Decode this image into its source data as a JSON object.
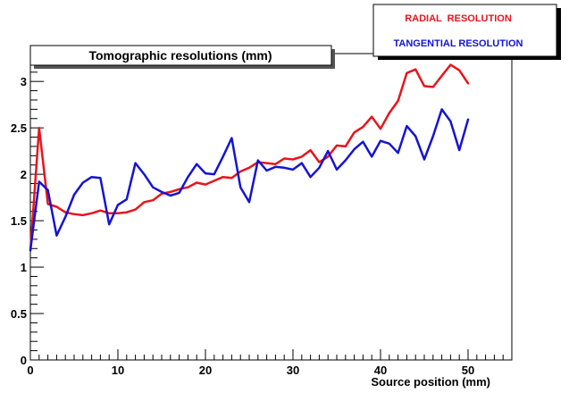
{
  "chart_data": {
    "type": "line",
    "title": "Tomographic resolutions (mm)",
    "xlabel": "Source position (mm)",
    "ylabel": "",
    "xlim": [
      0,
      55
    ],
    "ylim": [
      0,
      3.3
    ],
    "xticks": [
      0,
      10,
      20,
      30,
      40,
      50
    ],
    "yticks": [
      0,
      0.5,
      1,
      1.5,
      2,
      2.5,
      3
    ],
    "ytick_labels": [
      "0",
      "0.5",
      "1",
      "1.5",
      "2",
      "2.5",
      "3"
    ],
    "legend_position": "top-right",
    "grid": false,
    "x": [
      0,
      1,
      2,
      3,
      4,
      5,
      6,
      7,
      8,
      9,
      10,
      11,
      12,
      13,
      14,
      15,
      16,
      17,
      18,
      19,
      20,
      21,
      22,
      23,
      24,
      25,
      26,
      27,
      28,
      29,
      30,
      31,
      32,
      33,
      34,
      35,
      36,
      37,
      38,
      39,
      40,
      41,
      42,
      43,
      44,
      45,
      46,
      47,
      48,
      49,
      50
    ],
    "series": [
      {
        "name": "RADIAL  RESOLUTION",
        "color": "#e8141c",
        "values": [
          1.18,
          2.5,
          1.68,
          1.65,
          1.59,
          1.57,
          1.56,
          1.58,
          1.61,
          1.58,
          1.58,
          1.59,
          1.62,
          1.7,
          1.72,
          1.79,
          1.81,
          1.84,
          1.86,
          1.91,
          1.89,
          1.93,
          1.97,
          1.96,
          2.03,
          2.07,
          2.13,
          2.12,
          2.11,
          2.17,
          2.16,
          2.19,
          2.26,
          2.13,
          2.19,
          2.31,
          2.3,
          2.45,
          2.51,
          2.62,
          2.49,
          2.66,
          2.79,
          3.09,
          3.13,
          2.95,
          2.94,
          3.06,
          3.18,
          3.12,
          2.98
        ]
      },
      {
        "name": "TANGENTIAL RESOLUTION",
        "color": "#1414d2",
        "values": [
          1.18,
          1.92,
          1.83,
          1.34,
          1.54,
          1.78,
          1.91,
          1.97,
          1.96,
          1.46,
          1.67,
          1.73,
          2.12,
          2.0,
          1.86,
          1.81,
          1.77,
          1.8,
          1.97,
          2.11,
          2.01,
          2.0,
          2.19,
          2.39,
          1.86,
          1.7,
          2.15,
          2.04,
          2.08,
          2.07,
          2.05,
          2.12,
          1.97,
          2.07,
          2.25,
          2.05,
          2.15,
          2.27,
          2.35,
          2.19,
          2.36,
          2.33,
          2.23,
          2.52,
          2.41,
          2.16,
          2.41,
          2.7,
          2.57,
          2.26,
          2.59
        ]
      }
    ]
  }
}
